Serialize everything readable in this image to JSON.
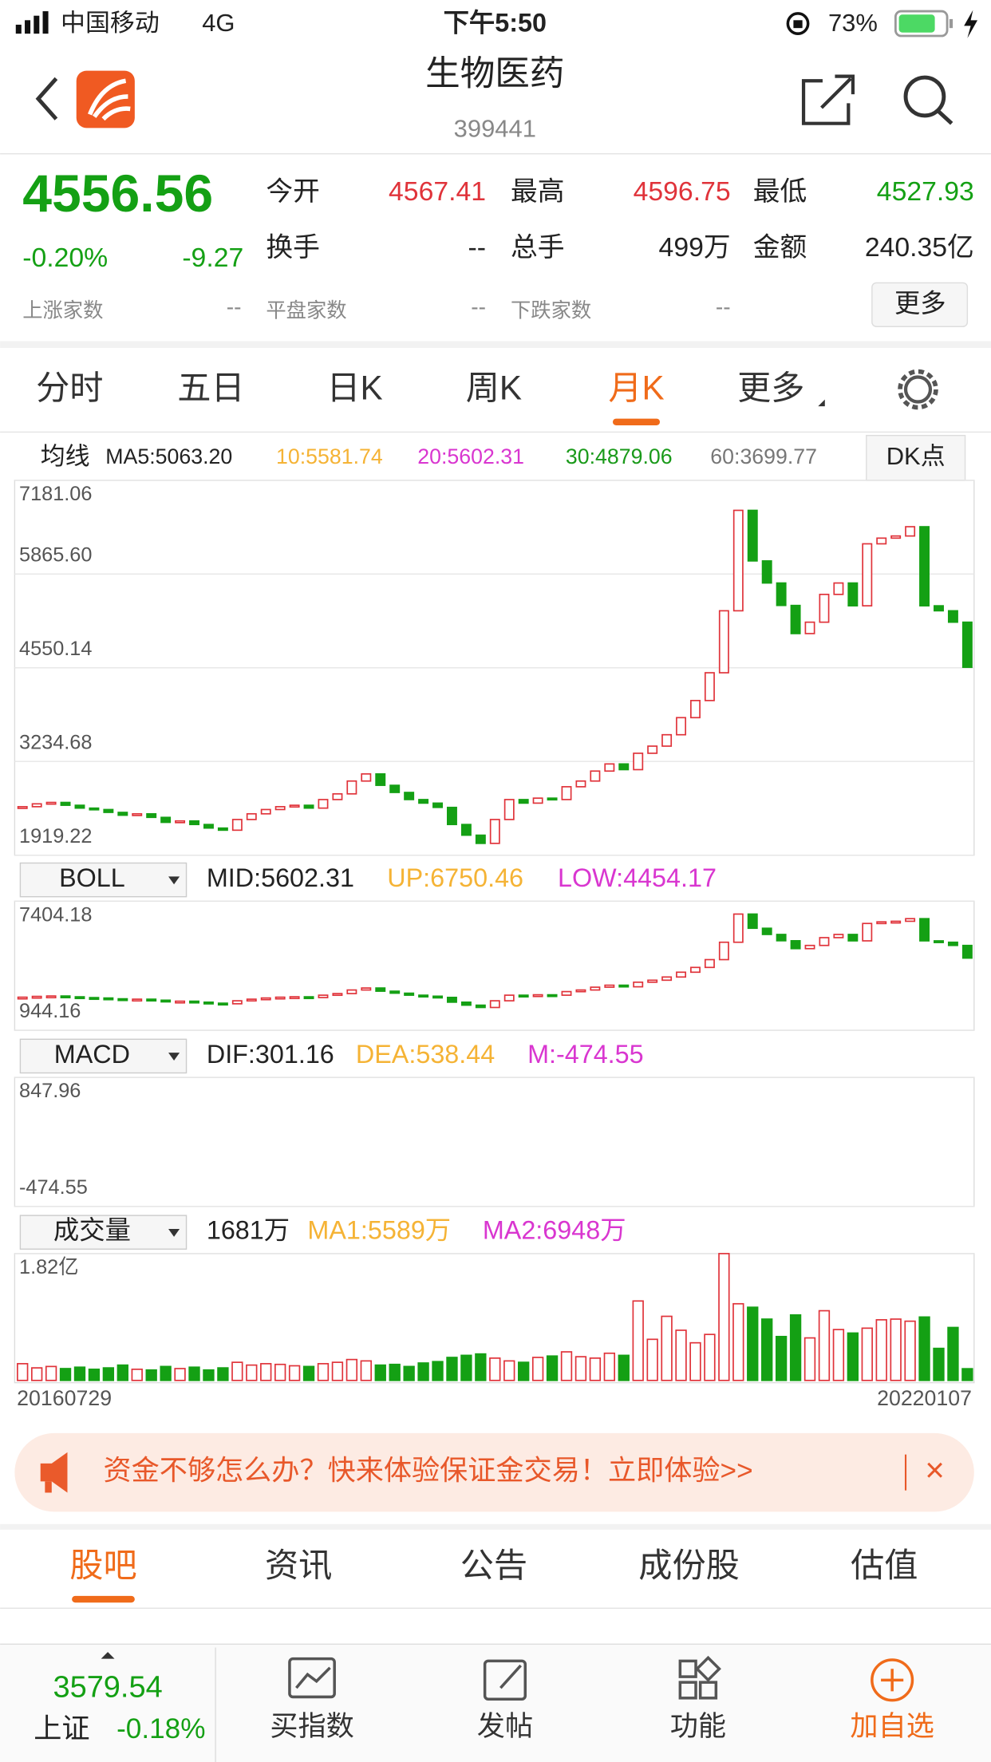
{
  "status": {
    "carrier": "中国移动",
    "network": "4G",
    "time": "下午5:50",
    "battery": "73%"
  },
  "header": {
    "title": "生物医药",
    "code": "399441"
  },
  "quote": {
    "price": "4556.56",
    "change_pct": "-0.20%",
    "change": "-9.27",
    "open_label": "今开",
    "open": "4567.41",
    "high_label": "最高",
    "high": "4596.75",
    "low_label": "最低",
    "low": "4527.93",
    "turnover_label": "换手",
    "turnover": "--",
    "volume_label": "总手",
    "volume": "499万",
    "amount_label": "金额",
    "amount": "240.35亿",
    "up_label": "上涨家数",
    "up": "--",
    "flat_label": "平盘家数",
    "flat": "--",
    "down_label": "下跌家数",
    "down": "--",
    "more": "更多"
  },
  "tabs": {
    "items": [
      "分时",
      "五日",
      "日K",
      "周K",
      "月K",
      "更多"
    ],
    "active": 4
  },
  "ma_legend": {
    "label": "均线",
    "items": [
      {
        "text": "MA5:5063.20",
        "color": "#222222"
      },
      {
        "text": "10:5581.74",
        "color": "#f5b335"
      },
      {
        "text": "20:5602.31",
        "color": "#d936d0"
      },
      {
        "text": "30:4879.06",
        "color": "#1a9a1a"
      },
      {
        "text": "60:3699.77",
        "color": "#777777"
      }
    ],
    "button": "DK点"
  },
  "chart_data": [
    {
      "type": "candlestick",
      "ylim": [
        1919.22,
        7181.06
      ],
      "yticks": [
        7181.06,
        {
          "value": 5865.6,
          "label": "5865.60"
        },
        4550.14,
        3234.68,
        1919.22
      ],
      "closes": [
        2600,
        2640,
        2660,
        2620,
        2580,
        2560,
        2520,
        2480,
        2500,
        2450,
        2380,
        2400,
        2350,
        2300,
        2270,
        2420,
        2500,
        2560,
        2600,
        2620,
        2580,
        2700,
        2780,
        2960,
        3060,
        2900,
        2800,
        2700,
        2650,
        2590,
        2350,
        2200,
        2085,
        2420,
        2700,
        2650,
        2720,
        2700,
        2880,
        2960,
        3100,
        3200,
        3120,
        3350,
        3450,
        3610,
        3850,
        4090,
        4480,
        5350,
        6760,
        6050,
        5740,
        5425,
        5030,
        5190,
        5580,
        5740,
        5420,
        6290,
        6370,
        6400,
        6530,
        5420,
        5350,
        5190,
        4556.56
      ],
      "up_color": "#e0333a",
      "down_color": "#14a014"
    },
    {
      "type": "candlestick",
      "indicator": "BOLL",
      "legend": [
        {
          "text": "MID:5602.31",
          "color": "#222222"
        },
        {
          "text": "UP:6750.46",
          "color": "#f5b335"
        },
        {
          "text": "LOW:4454.17",
          "color": "#d936d0"
        }
      ],
      "ylim": [
        944.16,
        7404.18
      ],
      "yticks": [
        7404.18,
        944.16
      ]
    },
    {
      "type": "macd",
      "indicator": "MACD",
      "legend": [
        {
          "text": "DIF:301.16",
          "color": "#222222"
        },
        {
          "text": "DEA:538.44",
          "color": "#f5b335"
        },
        {
          "text": "M:-474.55",
          "color": "#d936d0"
        }
      ],
      "ylim": [
        -474.55,
        847.96
      ],
      "yticks": [
        847.96,
        -474.55
      ]
    },
    {
      "type": "bar",
      "indicator": "成交量",
      "legend": [
        {
          "text": "1681万",
          "color": "#222222"
        },
        {
          "text": "MA1:5589万",
          "color": "#f5b335"
        },
        {
          "text": "MA2:6948万",
          "color": "#d936d0"
        }
      ],
      "ylim": [
        0,
        18200
      ],
      "yticks": [
        {
          "value": 18200,
          "label": "1.82亿"
        }
      ],
      "categories": [
        "20160729",
        null,
        null,
        null,
        null,
        null,
        null,
        null,
        null,
        null,
        null,
        null,
        null,
        null,
        null,
        null,
        null,
        null,
        null,
        null,
        null,
        null,
        null,
        null,
        null,
        null,
        null,
        null,
        null,
        null,
        null,
        null,
        null,
        null,
        null,
        null,
        null,
        null,
        null,
        null,
        null,
        null,
        null,
        null,
        null,
        null,
        null,
        null,
        null,
        null,
        null,
        null,
        null,
        null,
        null,
        null,
        null,
        null,
        null,
        null,
        null,
        null,
        null,
        null,
        null,
        null,
        "20220107"
      ],
      "values": [
        2400,
        1800,
        2000,
        1700,
        1900,
        1600,
        1800,
        2200,
        1600,
        1500,
        2000,
        1700,
        1900,
        1500,
        1800,
        2600,
        2200,
        2400,
        2300,
        2100,
        2000,
        2400,
        2600,
        3000,
        2800,
        2200,
        2300,
        2000,
        2500,
        2700,
        3300,
        3600,
        3800,
        3200,
        2800,
        2600,
        3300,
        3500,
        4100,
        3400,
        3200,
        3900,
        3600,
        11400,
        5900,
        9200,
        7200,
        5400,
        6600,
        18200,
        11000,
        10500,
        8800,
        6300,
        9400,
        6100,
        10000,
        7300,
        6800,
        7500,
        8700,
        8800,
        8500,
        9100,
        4600,
        7600,
        1681
      ]
    }
  ],
  "ad": {
    "text": "资金不够怎么办？快来体验保证金交易！立即体验>>",
    "close": "×"
  },
  "sub_tabs": {
    "items": [
      "股吧",
      "资讯",
      "公告",
      "成份股",
      "估值"
    ],
    "active": 0
  },
  "bottom": {
    "index_value": "3579.54",
    "index_name": "上证",
    "index_change": "-0.18%",
    "buttons": [
      "买指数",
      "发帖",
      "功能",
      "加自选"
    ]
  }
}
